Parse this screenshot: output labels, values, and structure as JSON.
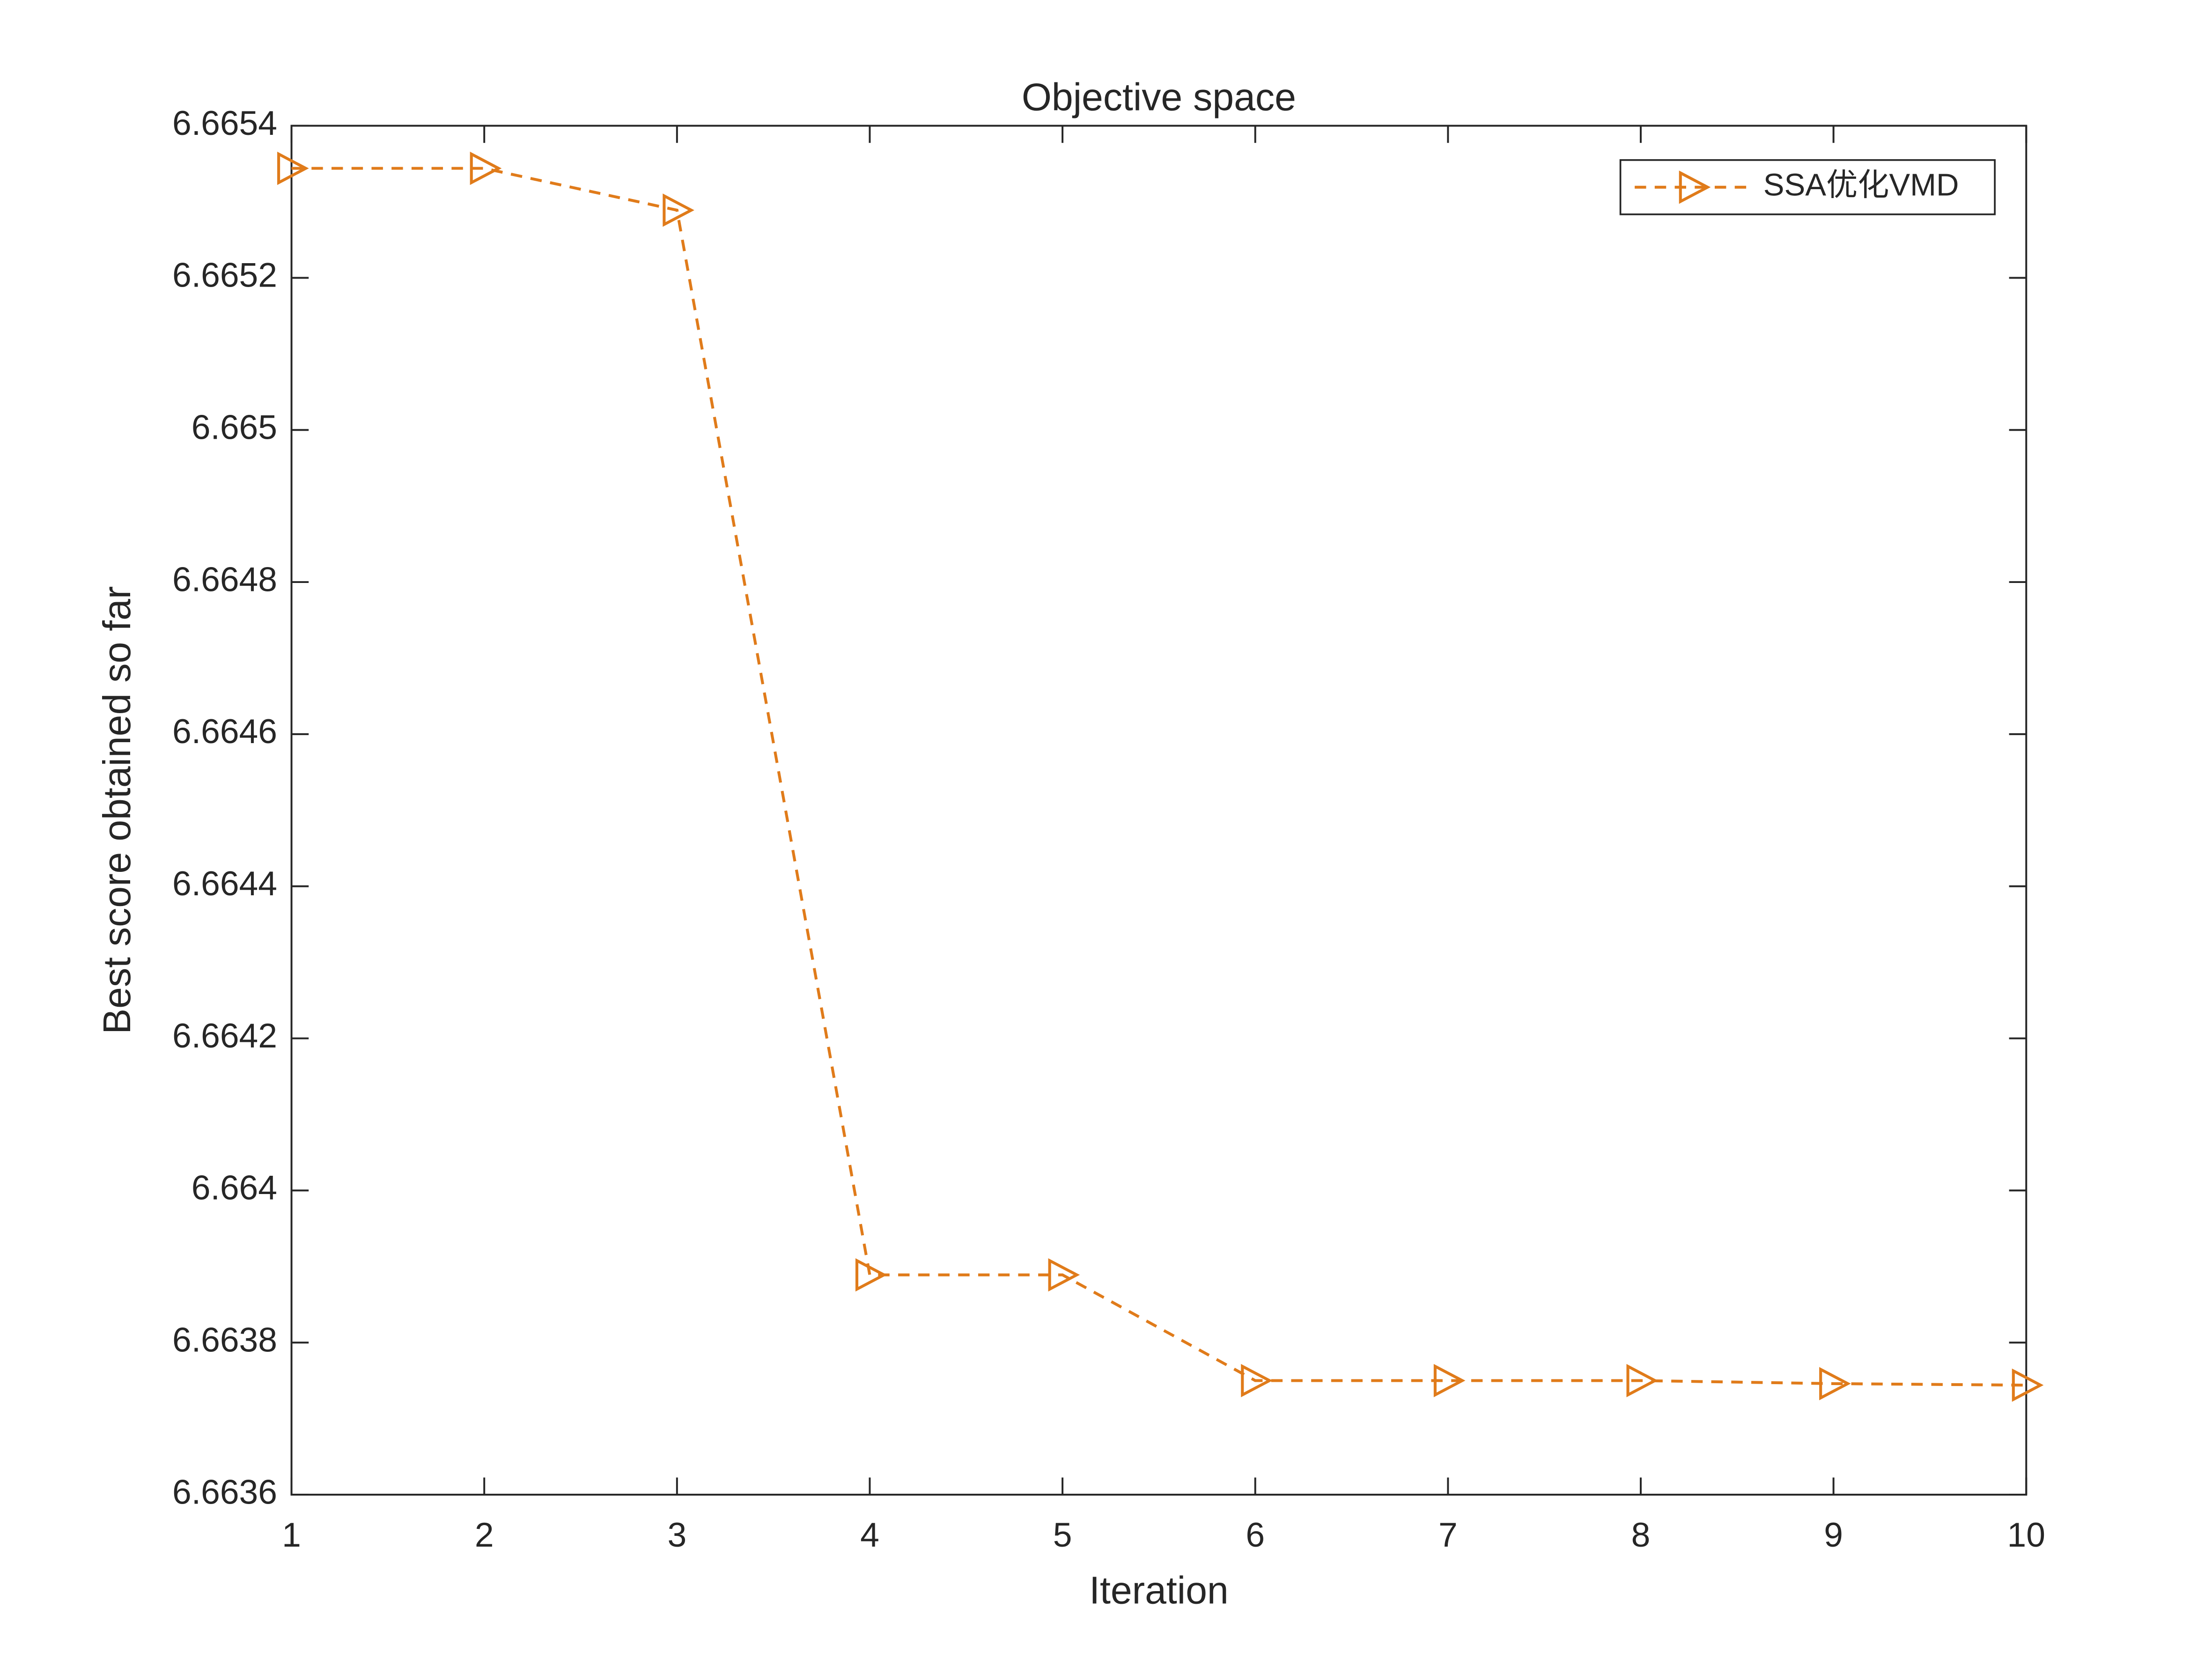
{
  "chart_data": {
    "type": "line",
    "title": "Objective space",
    "x_label": "Iteration",
    "y_label": "Best score obtained so far",
    "x": [
      1,
      2,
      3,
      4,
      5,
      6,
      7,
      8,
      9,
      10
    ],
    "series": [
      {
        "name": "SSA优化VMD",
        "color": "#e07b1a",
        "values": [
          6.665344,
          6.665344,
          6.665289,
          6.663889,
          6.663889,
          6.66375,
          6.66375,
          6.66375,
          6.663746,
          6.663744
        ]
      }
    ],
    "xlim": [
      1,
      10
    ],
    "xticks": [
      1,
      2,
      3,
      4,
      5,
      6,
      7,
      8,
      9,
      10
    ],
    "ylim": [
      6.6636,
      6.6654
    ],
    "yticks": [
      6.6636,
      6.6638,
      6.664,
      6.6642,
      6.6644,
      6.6646,
      6.6648,
      6.665,
      6.6652,
      6.6654
    ],
    "legend": "upper right",
    "grid": false
  }
}
